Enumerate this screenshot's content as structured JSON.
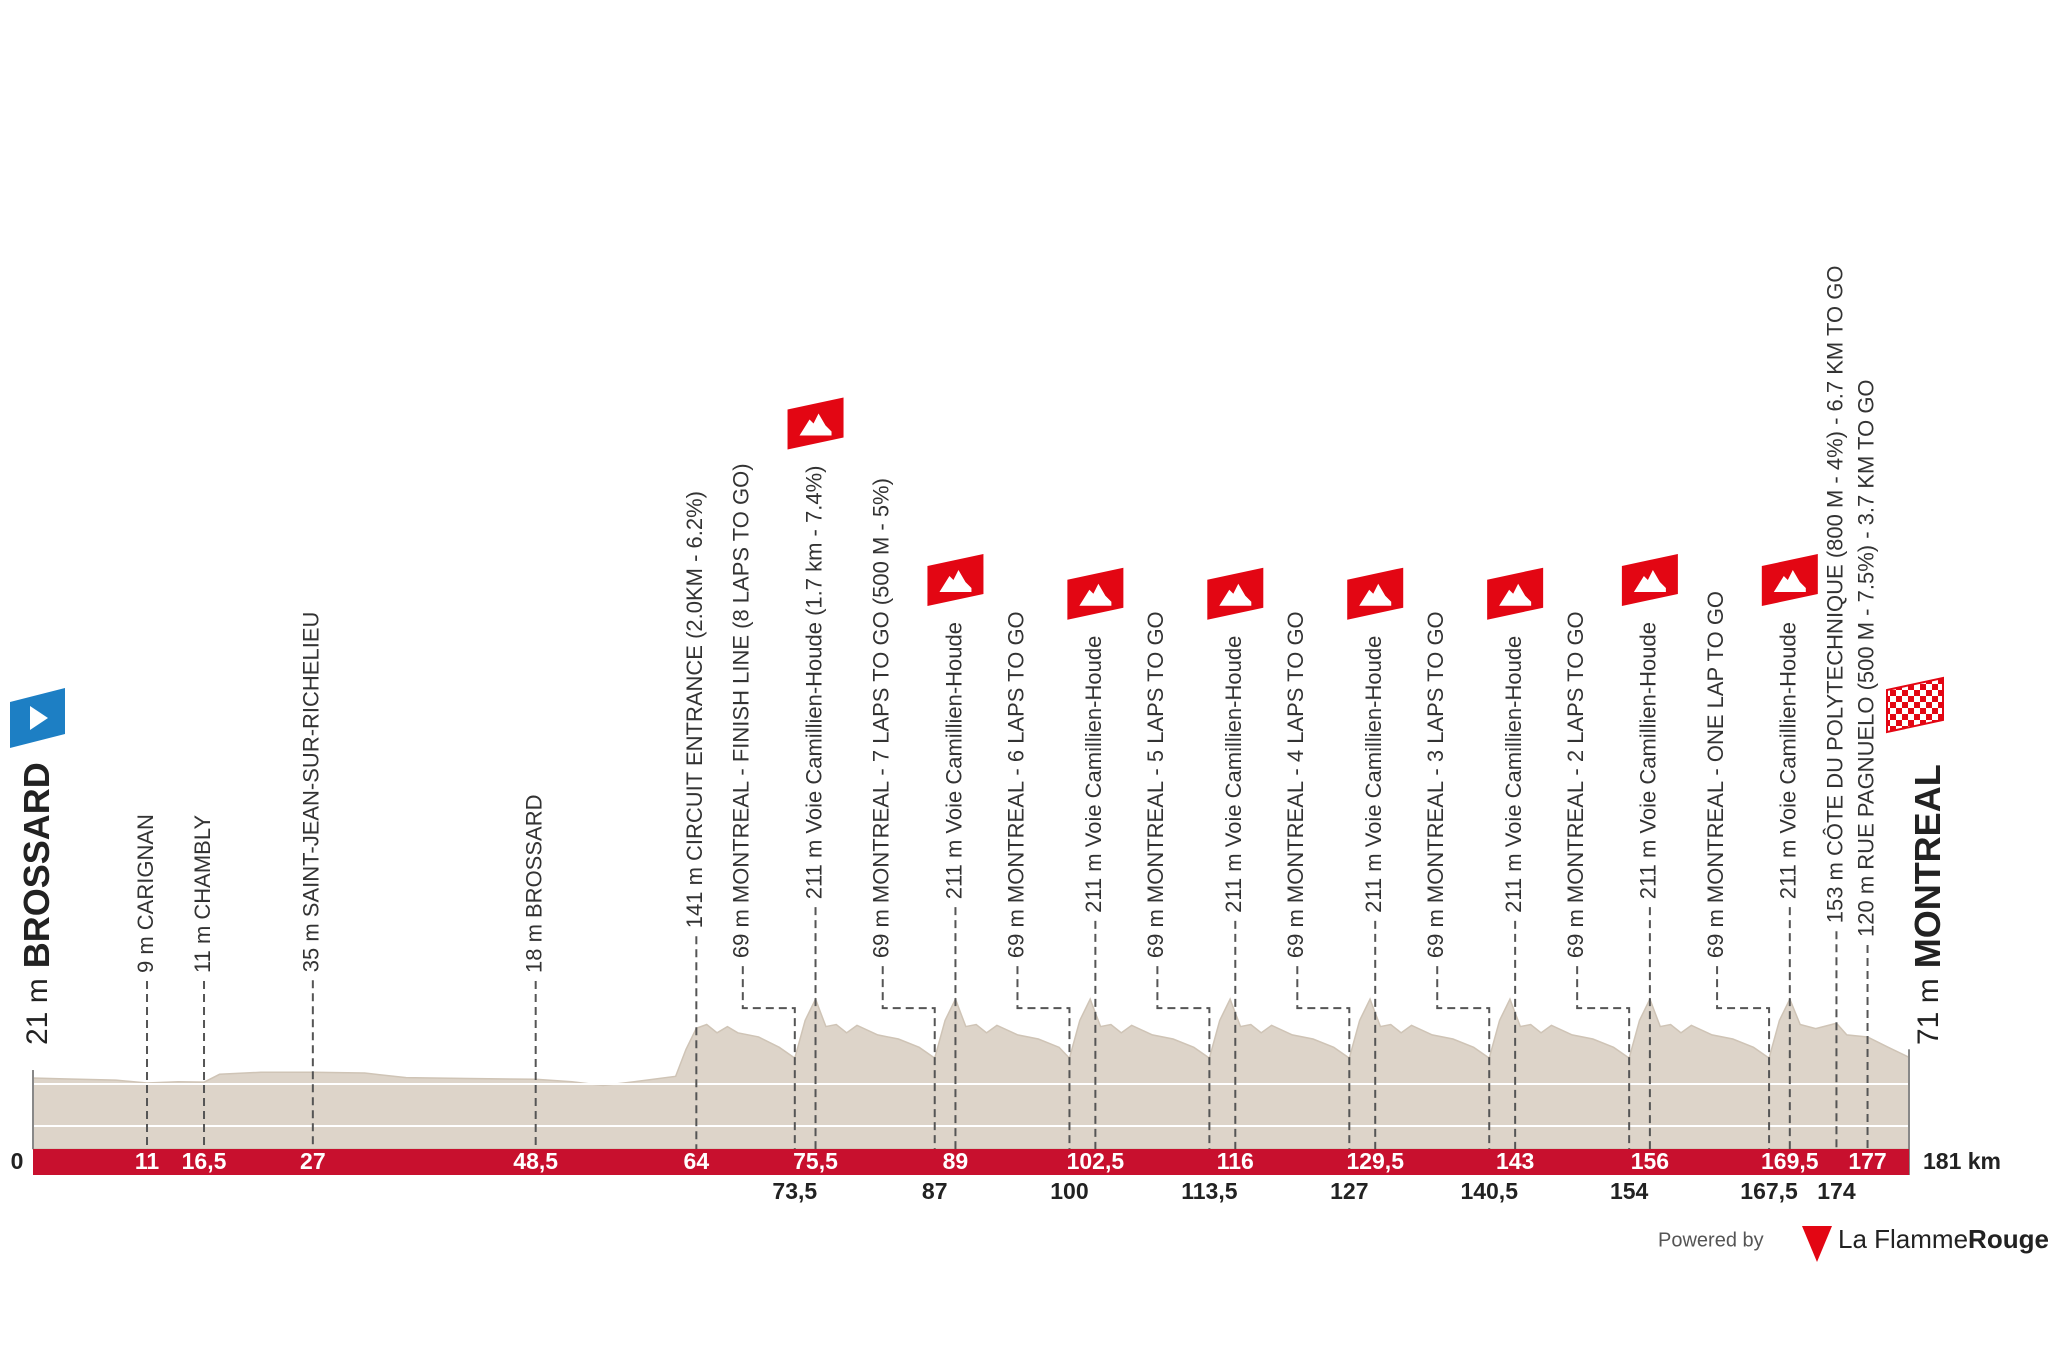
{
  "chart_data": {
    "type": "area",
    "color": "#ddd4c9",
    "band_color": "#c8102e",
    "kom_color": "#e30613",
    "start": {
      "altitude": "21 m",
      "name": "BROSSARD"
    },
    "finish": {
      "altitude": "71 m",
      "name": "MONTREAL"
    },
    "xlim": [
      0,
      181
    ],
    "ylim": [
      -150,
      250
    ],
    "xticks": [
      0,
      11,
      {
        "value": 16.5,
        "label": "16,5"
      },
      27,
      {
        "value": 48.5,
        "label": "48,5"
      },
      64,
      {
        "value": 75.5,
        "label": "75,5"
      },
      89,
      {
        "value": 102.5,
        "label": "102,5"
      },
      116,
      {
        "value": 129.5,
        "label": "129,5"
      },
      143,
      156,
      {
        "value": 169.5,
        "label": "169,5"
      },
      177,
      {
        "value": 181,
        "label": "181 km"
      }
    ],
    "xticks_lower": [
      {
        "value": 73.5,
        "label": "73,5"
      },
      87,
      100,
      {
        "value": 113.5,
        "label": "113,5"
      },
      127,
      {
        "value": 140.5,
        "label": "140,5"
      },
      154,
      {
        "value": 167.5,
        "label": "167,5"
      },
      174
    ],
    "x": [
      0,
      3,
      8,
      11,
      14,
      16.5,
      18,
      22,
      27,
      32,
      36,
      42,
      48.5,
      52,
      55,
      58,
      62,
      63,
      64,
      65,
      66,
      67,
      68,
      70,
      72,
      73.5,
      74.5,
      75.5,
      76.5,
      77.5,
      78.5,
      79.5,
      81.5,
      83.5,
      85.5,
      87,
      88,
      89,
      90,
      91,
      92,
      93,
      95,
      97,
      99,
      100,
      101,
      102,
      103,
      104,
      105,
      106,
      108,
      110,
      112,
      113.5,
      114.5,
      115.5,
      116.5,
      117.5,
      118.5,
      119.5,
      121.5,
      123.5,
      125.5,
      127,
      128,
      129,
      130,
      131,
      132,
      133,
      135,
      137,
      139,
      140.5,
      141.5,
      142.5,
      143.5,
      144.5,
      145.5,
      146.5,
      148.5,
      150.5,
      152.5,
      154,
      155,
      156,
      157,
      158,
      159,
      160,
      162,
      164,
      166,
      167.5,
      168.5,
      169.5,
      170.5,
      172,
      174,
      175,
      177,
      179,
      181
    ],
    "values": [
      21,
      19,
      16,
      9,
      12,
      11,
      30,
      35,
      35,
      33,
      22,
      20,
      18,
      12,
      3,
      12,
      25,
      90,
      141,
      150,
      130,
      145,
      130,
      120,
      95,
      69,
      160,
      211,
      145,
      150,
      130,
      148,
      125,
      115,
      95,
      69,
      160,
      211,
      145,
      150,
      130,
      148,
      125,
      115,
      95,
      69,
      160,
      211,
      145,
      150,
      130,
      148,
      125,
      115,
      95,
      69,
      160,
      211,
      145,
      150,
      130,
      148,
      125,
      115,
      95,
      69,
      160,
      211,
      145,
      150,
      130,
      148,
      125,
      115,
      95,
      69,
      160,
      211,
      145,
      150,
      130,
      148,
      125,
      115,
      95,
      69,
      160,
      211,
      145,
      150,
      130,
      148,
      125,
      115,
      95,
      69,
      160,
      211,
      150,
      140,
      153,
      125,
      120,
      95,
      71
    ],
    "waypoints": [
      {
        "x": 11,
        "label": "9 m CARIGNAN"
      },
      {
        "x": 16.5,
        "label": "11 m CHAMBLY"
      },
      {
        "x": 27,
        "label": "35 m SAINT-JEAN-SUR-RICHELIEU"
      },
      {
        "x": 48.5,
        "label": "18 m BROSSARD"
      },
      {
        "x": 64,
        "label": "141 m CIRCUIT ENTRANCE (2.0KM - 6.2%)"
      },
      {
        "x": 73.5,
        "label": "69 m MONTREAL - FINISH LINE (8 LAPS TO GO)"
      },
      {
        "x": 75.5,
        "label": "211 m Voie Camillien-Houde (1.7 km - 7.4%)",
        "kom": true
      },
      {
        "x": 87,
        "label": "69 m MONTREAL - 7 LAPS TO GO (500 M - 5%)"
      },
      {
        "x": 89,
        "label": "211 m Voie Camillien-Houde",
        "kom": true
      },
      {
        "x": 100,
        "label": "69 m MONTREAL - 6 LAPS TO GO"
      },
      {
        "x": 102.5,
        "label": "211 m Voie Camillien-Houde",
        "kom": true
      },
      {
        "x": 113.5,
        "label": "69 m MONTREAL - 5 LAPS TO GO"
      },
      {
        "x": 116,
        "label": "211 m Voie Camillien-Houde",
        "kom": true
      },
      {
        "x": 127,
        "label": "69 m MONTREAL - 4 LAPS TO GO"
      },
      {
        "x": 129.5,
        "label": "211 m Voie Camillien-Houde",
        "kom": true
      },
      {
        "x": 140.5,
        "label": "69 m MONTREAL - 3 LAPS TO GO"
      },
      {
        "x": 143,
        "label": "211 m Voie Camillien-Houde",
        "kom": true
      },
      {
        "x": 154,
        "label": "69 m MONTREAL - 2 LAPS TO GO"
      },
      {
        "x": 156,
        "label": "211 m Voie Camillien-Houde",
        "kom": true
      },
      {
        "x": 167.5,
        "label": "69 m MONTREAL - ONE LAP TO GO"
      },
      {
        "x": 169.5,
        "label": "211 m Voie Camillien-Houde",
        "kom": true
      },
      {
        "x": 174,
        "label": "153 m CÔTE DU POLYTECHNIQUE (800 M - 4%) - 6.7 KM TO GO"
      },
      {
        "x": 177,
        "label": "120 m RUE PAGNUELO (500 M - 7.5%) - 3.7 KM TO GO"
      }
    ],
    "credit": "Powered by",
    "brand": "La Flamme",
    "brand_bold": "Rouge"
  }
}
